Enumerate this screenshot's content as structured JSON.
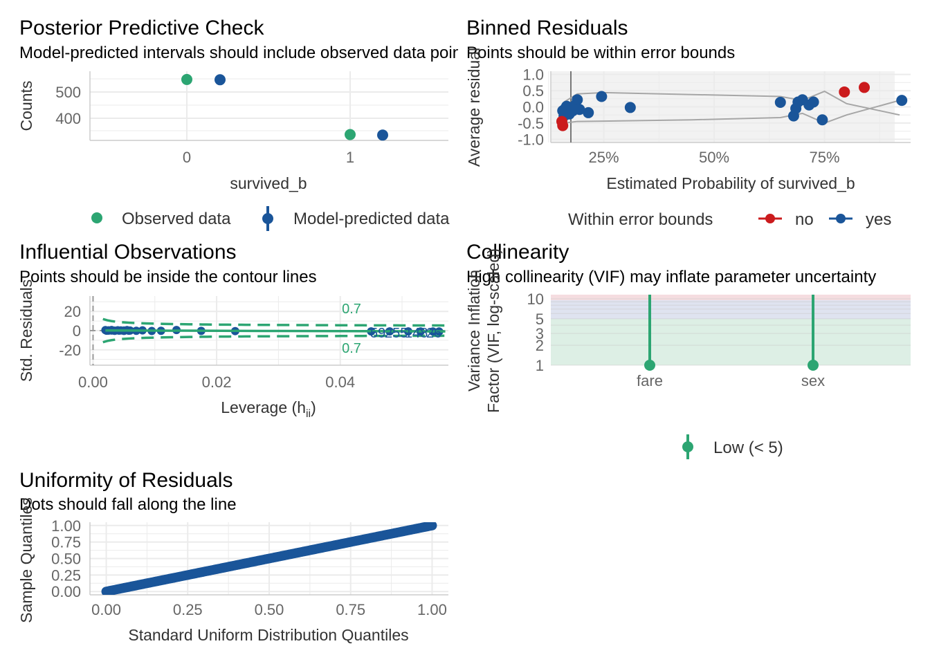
{
  "chart_data": [
    {
      "id": "ppc",
      "type": "scatter",
      "title": "Posterior Predictive Check",
      "subtitle": "Model-predicted intervals should include observed data points",
      "xlabel": "survived_b",
      "ylabel": "Counts",
      "categories": [
        "0",
        "1"
      ],
      "yticks": [
        "500",
        "400"
      ],
      "ylim": [
        320,
        580
      ],
      "series": [
        {
          "name": "Observed data",
          "values": [
            549,
            342
          ],
          "color": "#2ca572"
        },
        {
          "name": "Model-predicted data",
          "values": [
            548,
            340
          ],
          "low": [
            532,
            328
          ],
          "high": [
            562,
            354
          ],
          "color": "#1a5599"
        }
      ]
    },
    {
      "id": "binned",
      "type": "scatter",
      "title": "Binned Residuals",
      "subtitle": "Points should be within error bounds",
      "xlabel": "Estimated Probability of survived_b",
      "ylabel": "Average residual",
      "xticks": [
        "25%",
        "50%",
        "75%"
      ],
      "yticks": [
        "1.0",
        "0.5",
        "0.0",
        "-0.5",
        "-1.0"
      ],
      "xlim": [
        0.13,
        0.945
      ],
      "ylim": [
        -1.1,
        1.1
      ],
      "legend_title": "Within error bounds",
      "legend": [
        "no",
        "yes"
      ],
      "bound_x": [
        0.16,
        0.19,
        0.25,
        0.45,
        0.65,
        0.7,
        0.75,
        0.8,
        0.92
      ],
      "bound_upper": [
        0.15,
        0.4,
        0.44,
        0.38,
        0.32,
        0.2,
        0.48,
        0.1,
        -0.25
      ],
      "bound_lower": [
        -0.5,
        -0.45,
        -0.44,
        -0.4,
        -0.33,
        -0.2,
        -0.5,
        -0.25,
        0.2
      ],
      "points_no": [
        [
          0.155,
          -0.45
        ],
        [
          0.157,
          -0.58
        ],
        [
          0.795,
          0.46
        ],
        [
          0.84,
          0.6
        ]
      ],
      "points_yes": [
        [
          0.157,
          -0.12
        ],
        [
          0.16,
          -0.28
        ],
        [
          0.163,
          -0.05
        ],
        [
          0.166,
          0.02
        ],
        [
          0.172,
          -0.22
        ],
        [
          0.18,
          -0.12
        ],
        [
          0.185,
          0.05
        ],
        [
          0.19,
          0.22
        ],
        [
          0.195,
          -0.08
        ],
        [
          0.215,
          -0.18
        ],
        [
          0.245,
          0.32
        ],
        [
          0.31,
          -0.02
        ],
        [
          0.65,
          0.14
        ],
        [
          0.68,
          -0.28
        ],
        [
          0.685,
          -0.05
        ],
        [
          0.69,
          0.15
        ],
        [
          0.7,
          0.22
        ],
        [
          0.715,
          0.06
        ],
        [
          0.725,
          0.15
        ],
        [
          0.745,
          -0.4
        ],
        [
          0.925,
          0.2
        ]
      ]
    },
    {
      "id": "influence",
      "type": "scatter",
      "title": "Influential Observations",
      "subtitle": "Points should be inside the contour lines",
      "xlabel": "Leverage (h",
      "xlabel_sub": "ii",
      "xlabel_end": ")",
      "ylabel": "Std. Residuals",
      "xticks": [
        "0.00",
        "0.02",
        "0.04"
      ],
      "yticks": [
        "20",
        "0",
        "-20"
      ],
      "xlim": [
        -0.0005,
        0.0575
      ],
      "ylim": [
        -36,
        36
      ],
      "contour_labels": [
        "0.7",
        "0.7"
      ],
      "leverage_points": [
        [
          0.002,
          0.5
        ],
        [
          0.0025,
          0.3
        ],
        [
          0.003,
          0.6
        ],
        [
          0.0035,
          -0.2
        ],
        [
          0.004,
          0.4
        ],
        [
          0.0045,
          0.2
        ],
        [
          0.005,
          -0.3
        ],
        [
          0.0055,
          0.5
        ],
        [
          0.006,
          0.1
        ],
        [
          0.007,
          -0.2
        ],
        [
          0.008,
          0.3
        ],
        [
          0.0095,
          -0.4
        ],
        [
          0.011,
          -0.2
        ],
        [
          0.0135,
          0.6
        ],
        [
          0.0175,
          -0.3
        ],
        [
          0.023,
          -0.5
        ],
        [
          0.045,
          -0.8
        ],
        [
          0.048,
          -0.8
        ],
        [
          0.051,
          -0.8
        ],
        [
          0.053,
          -0.9
        ],
        [
          0.055,
          -0.9
        ],
        [
          0.056,
          -0.9
        ]
      ],
      "point_labels": [
        "59",
        "255",
        "148",
        "26"
      ]
    },
    {
      "id": "vif",
      "type": "scatter",
      "title": "Collinearity",
      "subtitle": "High collinearity (VIF) may inflate parameter uncertainty",
      "ylabel": "Variance Inflation",
      "ylabel2": "Factor (VIF, log-scaled)",
      "categories": [
        "fare",
        "sex"
      ],
      "values": [
        1.0,
        1.0
      ],
      "yticks": [
        "10",
        "5",
        "3",
        "2",
        "1"
      ],
      "ylim": [
        1,
        11
      ],
      "legend": [
        "Low (< 5)"
      ]
    },
    {
      "id": "qq",
      "type": "scatter",
      "title": "Uniformity of Residuals",
      "subtitle": "Dots should fall along the line",
      "xlabel": "Standard Uniform Distribution Quantiles",
      "ylabel": "Sample Quantiles",
      "xticks": [
        "0.00",
        "0.25",
        "0.50",
        "0.75",
        "1.00"
      ],
      "yticks": [
        "1.00",
        "0.75",
        "0.50",
        "0.25",
        "0.00"
      ],
      "xlim": [
        -0.05,
        1.05
      ],
      "ylim": [
        -0.05,
        1.05
      ]
    }
  ],
  "colors": {
    "green": "#2ca572",
    "blue": "#1a5599",
    "red": "#cb1b1d",
    "gray": "#a6a6a6"
  }
}
